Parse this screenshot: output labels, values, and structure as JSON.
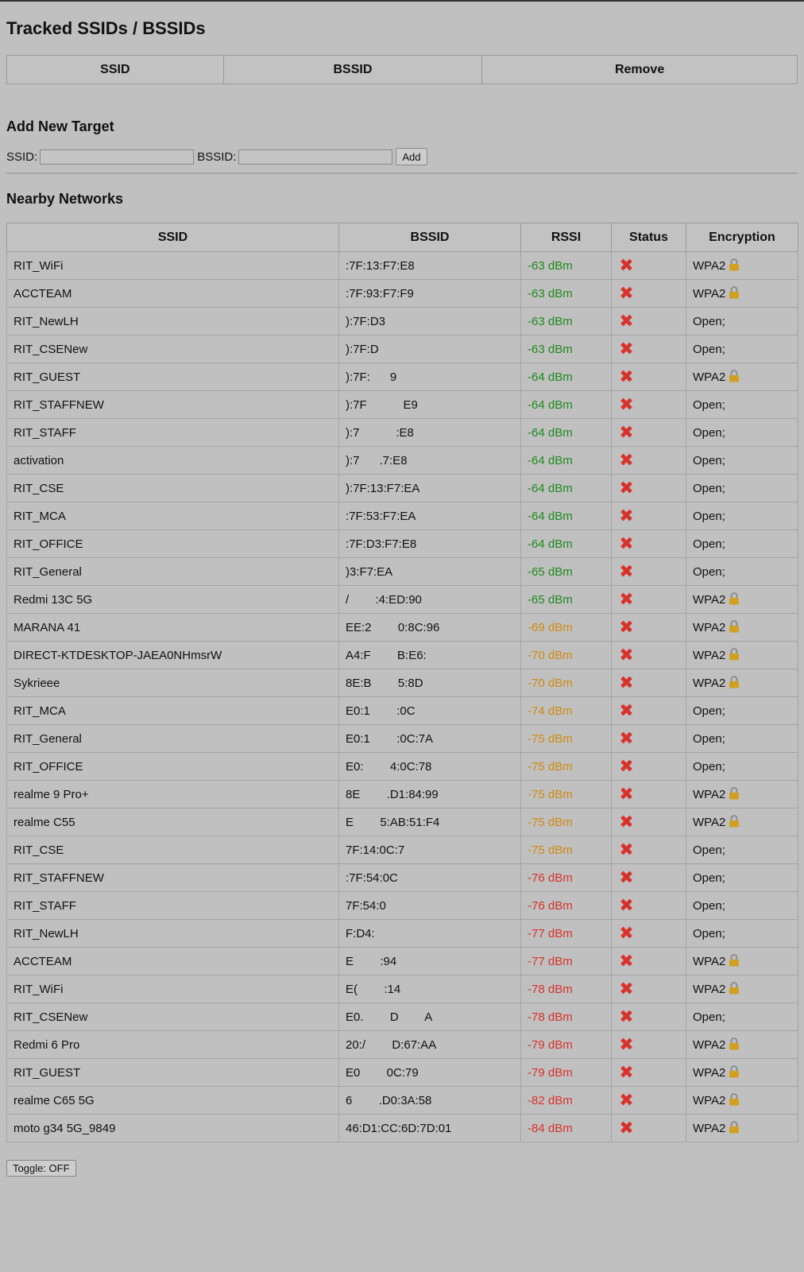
{
  "tracked": {
    "title": "Tracked SSIDs / BSSIDs",
    "headers": [
      "SSID",
      "BSSID",
      "Remove"
    ]
  },
  "add": {
    "title": "Add New Target",
    "ssid_label": "SSID:",
    "bssid_label": "BSSID:",
    "ssid_value": "",
    "bssid_value": "",
    "add_button": "Add"
  },
  "nearby": {
    "title": "Nearby Networks",
    "headers": [
      "SSID",
      "BSSID",
      "RSSI",
      "Status",
      "Encryption"
    ],
    "rows": [
      {
        "ssid": "RIT_WiFi",
        "bssid": ":7F:13:F7:E8",
        "rssi": "-63 dBm",
        "enc": "WPA2",
        "locked": true
      },
      {
        "ssid": "ACCTEAM",
        "bssid": ":7F:93:F7:F9",
        "rssi": "-63 dBm",
        "enc": "WPA2",
        "locked": true
      },
      {
        "ssid": "RIT_NewLH",
        "bssid": "):7F:D3",
        "rssi": "-63 dBm",
        "enc": "Open;",
        "locked": false
      },
      {
        "ssid": "RIT_CSENew",
        "bssid": "):7F:D",
        "rssi": "-63 dBm",
        "enc": "Open;",
        "locked": false
      },
      {
        "ssid": "RIT_GUEST",
        "bssid": "):7F:      9",
        "rssi": "-64 dBm",
        "enc": "WPA2",
        "locked": true
      },
      {
        "ssid": "RIT_STAFFNEW",
        "bssid": "):7F           E9",
        "rssi": "-64 dBm",
        "enc": "Open;",
        "locked": false
      },
      {
        "ssid": "RIT_STAFF",
        "bssid": "):7           :E8",
        "rssi": "-64 dBm",
        "enc": "Open;",
        "locked": false
      },
      {
        "ssid": "activation",
        "bssid": "):7      .7:E8",
        "rssi": "-64 dBm",
        "enc": "Open;",
        "locked": false
      },
      {
        "ssid": "RIT_CSE",
        "bssid": "):7F:13:F7:EA",
        "rssi": "-64 dBm",
        "enc": "Open;",
        "locked": false
      },
      {
        "ssid": "RIT_MCA",
        "bssid": ":7F:53:F7:EA",
        "rssi": "-64 dBm",
        "enc": "Open;",
        "locked": false
      },
      {
        "ssid": "RIT_OFFICE",
        "bssid": ":7F:D3:F7:E8",
        "rssi": "-64 dBm",
        "enc": "Open;",
        "locked": false
      },
      {
        "ssid": "RIT_General",
        "bssid": ")3:F7:EA",
        "rssi": "-65 dBm",
        "enc": "Open;",
        "locked": false
      },
      {
        "ssid": "Redmi 13C 5G",
        "bssid": "/        :4:ED:90",
        "rssi": "-65 dBm",
        "enc": "WPA2",
        "locked": true
      },
      {
        "ssid": "MARANA 41",
        "bssid": "EE:2        0:8C:96",
        "rssi": "-69 dBm",
        "enc": "WPA2",
        "locked": true
      },
      {
        "ssid": "DIRECT-KTDESKTOP-JAEA0NHmsrW",
        "bssid": "A4:F        B:E6:",
        "rssi": "-70 dBm",
        "enc": "WPA2",
        "locked": true
      },
      {
        "ssid": "Sykrieee",
        "bssid": "8E:B        5:8D",
        "rssi": "-70 dBm",
        "enc": "WPA2",
        "locked": true
      },
      {
        "ssid": "RIT_MCA",
        "bssid": "E0:1        :0C",
        "rssi": "-74 dBm",
        "enc": "Open;",
        "locked": false
      },
      {
        "ssid": "RIT_General",
        "bssid": "E0:1        :0C:7A",
        "rssi": "-75 dBm",
        "enc": "Open;",
        "locked": false
      },
      {
        "ssid": "RIT_OFFICE",
        "bssid": "E0:        4:0C:78",
        "rssi": "-75 dBm",
        "enc": "Open;",
        "locked": false
      },
      {
        "ssid": "realme 9 Pro+",
        "bssid": "8E        .D1:84:99",
        "rssi": "-75 dBm",
        "enc": "WPA2",
        "locked": true
      },
      {
        "ssid": "realme C55",
        "bssid": "E        5:AB:51:F4",
        "rssi": "-75 dBm",
        "enc": "WPA2",
        "locked": true
      },
      {
        "ssid": "RIT_CSE",
        "bssid": "7F:14:0C:7",
        "rssi": "-75 dBm",
        "enc": "Open;",
        "locked": false
      },
      {
        "ssid": "RIT_STAFFNEW",
        "bssid": ":7F:54:0C",
        "rssi": "-76 dBm",
        "enc": "Open;",
        "locked": false
      },
      {
        "ssid": "RIT_STAFF",
        "bssid": "7F:54:0",
        "rssi": "-76 dBm",
        "enc": "Open;",
        "locked": false
      },
      {
        "ssid": "RIT_NewLH",
        "bssid": "F:D4:",
        "rssi": "-77 dBm",
        "enc": "Open;",
        "locked": false
      },
      {
        "ssid": "ACCTEAM",
        "bssid": "E        :94",
        "rssi": "-77 dBm",
        "enc": "WPA2",
        "locked": true
      },
      {
        "ssid": "RIT_WiFi",
        "bssid": "E(        :14",
        "rssi": "-78 dBm",
        "enc": "WPA2",
        "locked": true
      },
      {
        "ssid": "RIT_CSENew",
        "bssid": "E0.        D        A",
        "rssi": "-78 dBm",
        "enc": "Open;",
        "locked": false
      },
      {
        "ssid": "Redmi 6 Pro",
        "bssid": "20:/        D:67:AA",
        "rssi": "-79 dBm",
        "enc": "WPA2",
        "locked": true
      },
      {
        "ssid": "RIT_GUEST",
        "bssid": "E0        0C:79",
        "rssi": "-79 dBm",
        "enc": "WPA2",
        "locked": true
      },
      {
        "ssid": "realme C65 5G",
        "bssid": "6        .D0:3A:58",
        "rssi": "-82 dBm",
        "enc": "WPA2",
        "locked": true
      },
      {
        "ssid": "moto g34 5G_9849",
        "bssid": "46:D1:CC:6D:7D:01",
        "rssi": "-84 dBm",
        "enc": "WPA2",
        "locked": true
      }
    ]
  },
  "toggle_button": "Toggle: OFF",
  "colors": {
    "rssi_good": "#1e8a1e",
    "rssi_fair": "#d08a10",
    "rssi_poor": "#d8322c",
    "status_x": "#d8322c",
    "lock": "#d2a020"
  },
  "icons": {
    "status": "close-x-icon",
    "encryption": "lock-icon"
  }
}
